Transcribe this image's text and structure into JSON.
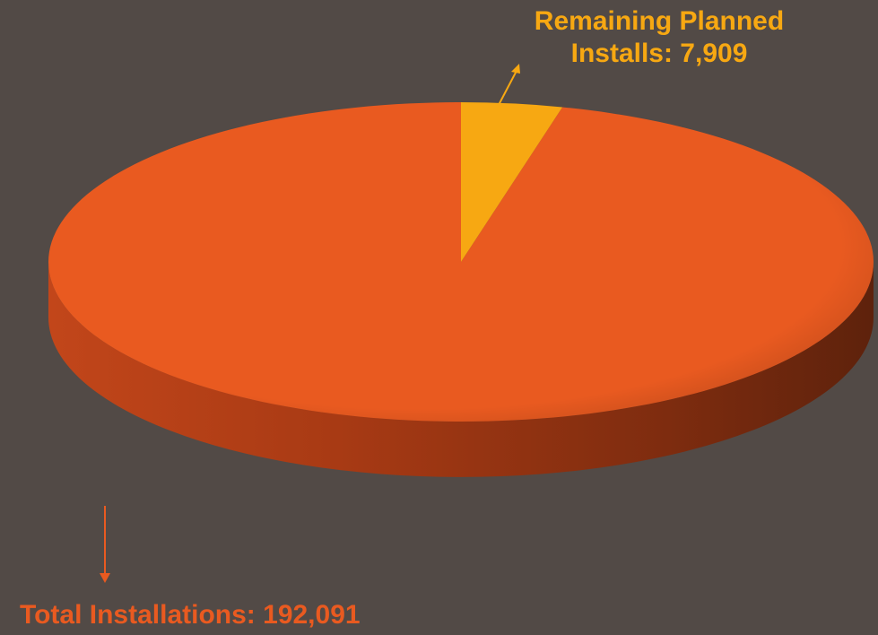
{
  "chart_data": {
    "type": "pie",
    "title": "",
    "slices": [
      {
        "name": "Total Installations",
        "value": 192091,
        "color": "#E95A20",
        "label": "Total Installations: 192,091"
      },
      {
        "name": "Remaining Planned Installs",
        "value": 7909,
        "color": "#F7A812",
        "label_lines": [
          "Remaining Planned",
          "Installs: 7,909"
        ]
      }
    ],
    "three_d": true,
    "legend": "none",
    "colors": {
      "background": "#524A46",
      "total": "#E95A20",
      "remaining": "#F7A812"
    }
  }
}
